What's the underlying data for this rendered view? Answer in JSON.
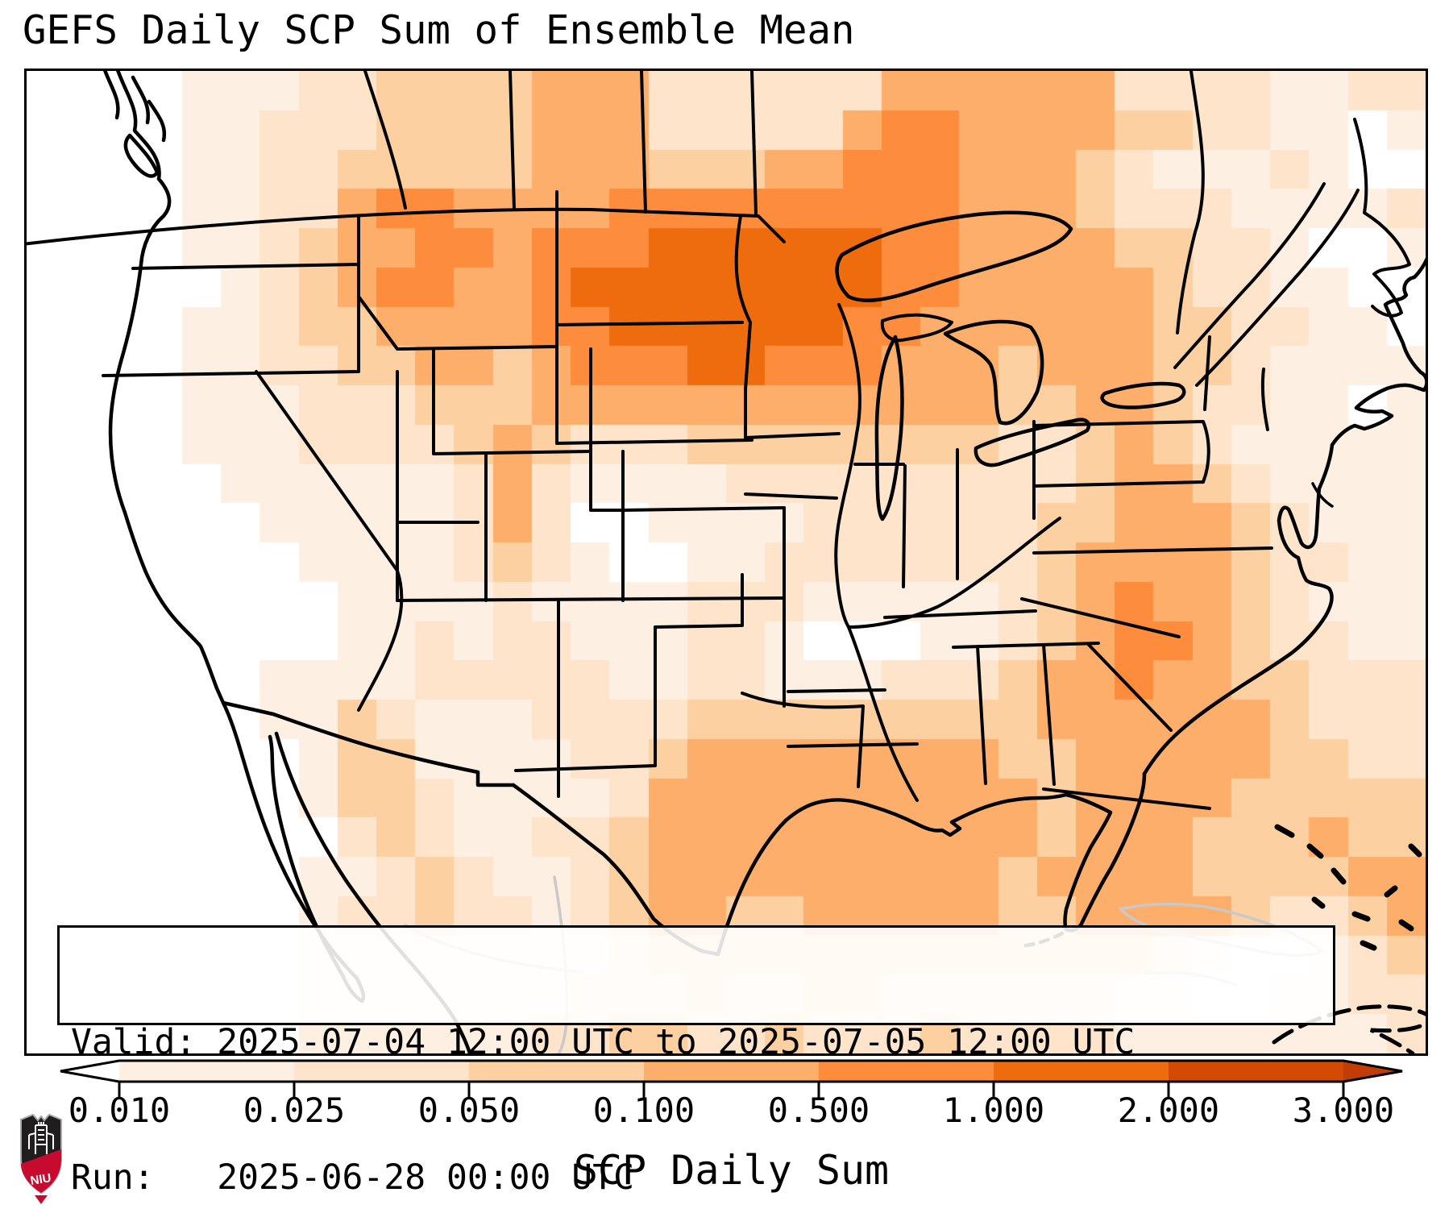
{
  "title": "GEFS Daily SCP Sum of Ensemble Mean",
  "info_box": {
    "valid_label": "Valid:",
    "valid_value": "2025-07-04 12:00 UTC to 2025-07-05 12:00 UTC",
    "run_label": "Run:",
    "run_value": "2025-06-28 00:00 UTC"
  },
  "logo": {
    "text": "NIU",
    "shield_dark": "#1f1d1e",
    "shield_red": "#c80a2e",
    "border_silver": "#a7a7a7"
  },
  "chart_data": {
    "type": "heatmap",
    "title": "GEFS Daily SCP Sum of Ensemble Mean",
    "colorbar_label": "SCP Daily Sum",
    "tick_labels": [
      "0.010",
      "0.025",
      "0.050",
      "0.100",
      "0.500",
      "1.000",
      "2.000",
      "3.000"
    ],
    "levels": [
      0.01,
      0.025,
      0.05,
      0.1,
      0.5,
      1.0,
      2.0,
      3.0
    ],
    "extend": "both",
    "colors": [
      "#ffffff",
      "#fdf0e2",
      "#fde4cb",
      "#fdd0a2",
      "#fdae6b",
      "#fd8d3c",
      "#ef6c0e",
      "#d34b02",
      "#c23d05"
    ],
    "legend_position": "bottom",
    "region": "North America (CONUS, southern Canada, northern Mexico)",
    "grid_note": "color-index grid, run-length encoded rows [index,count]; index 0=below 0.010 (white), 1..7=levels between ticks, 8=above 3.000",
    "grid_cols": 36,
    "grid_rows": 25,
    "grid_rle": [
      [
        [
          0,
          4
        ],
        [
          1,
          3
        ],
        [
          2,
          2
        ],
        [
          3,
          4
        ],
        [
          4,
          3
        ],
        [
          2,
          6
        ],
        [
          4,
          6
        ],
        [
          2,
          4
        ],
        [
          1,
          2
        ],
        [
          2,
          2
        ]
      ],
      [
        [
          0,
          4
        ],
        [
          1,
          2
        ],
        [
          2,
          3
        ],
        [
          3,
          4
        ],
        [
          4,
          3
        ],
        [
          2,
          5
        ],
        [
          4,
          1
        ],
        [
          5,
          2
        ],
        [
          4,
          4
        ],
        [
          3,
          2
        ],
        [
          2,
          2
        ],
        [
          1,
          2
        ],
        [
          0,
          1
        ],
        [
          1,
          1
        ]
      ],
      [
        [
          0,
          4
        ],
        [
          1,
          2
        ],
        [
          2,
          2
        ],
        [
          3,
          5
        ],
        [
          4,
          3
        ],
        [
          3,
          3
        ],
        [
          4,
          2
        ],
        [
          5,
          3
        ],
        [
          4,
          3
        ],
        [
          3,
          1
        ],
        [
          2,
          1
        ],
        [
          1,
          3
        ],
        [
          2,
          1
        ],
        [
          1,
          1
        ],
        [
          0,
          2
        ]
      ],
      [
        [
          0,
          4
        ],
        [
          1,
          2
        ],
        [
          2,
          2
        ],
        [
          4,
          1
        ],
        [
          5,
          2
        ],
        [
          4,
          4
        ],
        [
          5,
          9
        ],
        [
          4,
          3
        ],
        [
          3,
          1
        ],
        [
          2,
          3
        ],
        [
          1,
          4
        ],
        [
          2,
          1
        ]
      ],
      [
        [
          0,
          4
        ],
        [
          1,
          2
        ],
        [
          2,
          1
        ],
        [
          3,
          1
        ],
        [
          4,
          2
        ],
        [
          5,
          2
        ],
        [
          4,
          1
        ],
        [
          5,
          3
        ],
        [
          6,
          6
        ],
        [
          5,
          2
        ],
        [
          4,
          4
        ],
        [
          3,
          2
        ],
        [
          2,
          2
        ],
        [
          1,
          1
        ],
        [
          0,
          2
        ],
        [
          1,
          1
        ]
      ],
      [
        [
          0,
          5
        ],
        [
          1,
          1
        ],
        [
          2,
          1
        ],
        [
          3,
          1
        ],
        [
          4,
          1
        ],
        [
          5,
          2
        ],
        [
          4,
          2
        ],
        [
          5,
          1
        ],
        [
          6,
          8
        ],
        [
          5,
          2
        ],
        [
          4,
          5
        ],
        [
          3,
          1
        ],
        [
          2,
          2
        ],
        [
          1,
          2
        ],
        [
          0,
          2
        ]
      ],
      [
        [
          0,
          4
        ],
        [
          1,
          2
        ],
        [
          2,
          1
        ],
        [
          3,
          2
        ],
        [
          4,
          4
        ],
        [
          5,
          2
        ],
        [
          6,
          6
        ],
        [
          5,
          2
        ],
        [
          4,
          6
        ],
        [
          3,
          2
        ],
        [
          2,
          2
        ],
        [
          1,
          2
        ],
        [
          0,
          1
        ]
      ],
      [
        [
          0,
          4
        ],
        [
          1,
          2
        ],
        [
          2,
          2
        ],
        [
          3,
          2
        ],
        [
          4,
          2
        ],
        [
          3,
          1
        ],
        [
          4,
          1
        ],
        [
          5,
          3
        ],
        [
          6,
          2
        ],
        [
          5,
          3
        ],
        [
          4,
          3
        ],
        [
          3,
          1
        ],
        [
          4,
          3
        ],
        [
          3,
          2
        ],
        [
          2,
          1
        ],
        [
          1,
          4
        ]
      ],
      [
        [
          0,
          4
        ],
        [
          1,
          3
        ],
        [
          2,
          3
        ],
        [
          3,
          3
        ],
        [
          4,
          12
        ],
        [
          3,
          2
        ],
        [
          4,
          2
        ],
        [
          3,
          1
        ],
        [
          2,
          2
        ],
        [
          1,
          2
        ],
        [
          0,
          1
        ],
        [
          1,
          1
        ]
      ],
      [
        [
          0,
          4
        ],
        [
          1,
          3
        ],
        [
          2,
          4
        ],
        [
          3,
          1
        ],
        [
          4,
          1
        ],
        [
          3,
          1
        ],
        [
          2,
          3
        ],
        [
          3,
          8
        ],
        [
          2,
          2
        ],
        [
          3,
          1
        ],
        [
          4,
          1
        ],
        [
          3,
          1
        ],
        [
          2,
          1
        ],
        [
          1,
          5
        ]
      ],
      [
        [
          0,
          5
        ],
        [
          1,
          6
        ],
        [
          2,
          1
        ],
        [
          4,
          1
        ],
        [
          2,
          1
        ],
        [
          1,
          4
        ],
        [
          2,
          9
        ],
        [
          3,
          1
        ],
        [
          4,
          2
        ],
        [
          3,
          1
        ],
        [
          2,
          1
        ],
        [
          1,
          4
        ]
      ],
      [
        [
          0,
          6
        ],
        [
          1,
          5
        ],
        [
          2,
          1
        ],
        [
          4,
          1
        ],
        [
          2,
          1
        ],
        [
          0,
          2
        ],
        [
          1,
          4
        ],
        [
          2,
          6
        ],
        [
          3,
          2
        ],
        [
          4,
          3
        ],
        [
          3,
          1
        ],
        [
          2,
          1
        ],
        [
          1,
          3
        ]
      ],
      [
        [
          0,
          7
        ],
        [
          1,
          4
        ],
        [
          2,
          1
        ],
        [
          3,
          1
        ],
        [
          2,
          1
        ],
        [
          1,
          1
        ],
        [
          0,
          2
        ],
        [
          1,
          2
        ],
        [
          2,
          7
        ],
        [
          3,
          1
        ],
        [
          4,
          4
        ],
        [
          3,
          1
        ],
        [
          2,
          2
        ],
        [
          1,
          2
        ]
      ],
      [
        [
          0,
          8
        ],
        [
          1,
          4
        ],
        [
          2,
          1
        ],
        [
          1,
          4
        ],
        [
          2,
          3
        ],
        [
          1,
          5
        ],
        [
          2,
          1
        ],
        [
          3,
          1
        ],
        [
          4,
          1
        ],
        [
          5,
          1
        ],
        [
          4,
          2
        ],
        [
          3,
          1
        ],
        [
          2,
          1
        ],
        [
          1,
          3
        ]
      ],
      [
        [
          0,
          8
        ],
        [
          1,
          2
        ],
        [
          2,
          1
        ],
        [
          1,
          1
        ],
        [
          2,
          2
        ],
        [
          1,
          3
        ],
        [
          2,
          2
        ],
        [
          1,
          1
        ],
        [
          0,
          3
        ],
        [
          1,
          2
        ],
        [
          2,
          1
        ],
        [
          3,
          1
        ],
        [
          4,
          1
        ],
        [
          5,
          2
        ],
        [
          4,
          1
        ],
        [
          3,
          1
        ],
        [
          2,
          2
        ],
        [
          1,
          2
        ]
      ],
      [
        [
          0,
          6
        ],
        [
          1,
          4
        ],
        [
          2,
          5
        ],
        [
          1,
          2
        ],
        [
          2,
          2
        ],
        [
          1,
          3
        ],
        [
          2,
          3
        ],
        [
          3,
          1
        ],
        [
          4,
          2
        ],
        [
          5,
          1
        ],
        [
          4,
          2
        ],
        [
          3,
          2
        ],
        [
          2,
          3
        ]
      ],
      [
        [
          0,
          6
        ],
        [
          1,
          2
        ],
        [
          3,
          1
        ],
        [
          2,
          1
        ],
        [
          1,
          3
        ],
        [
          2,
          4
        ],
        [
          3,
          9
        ],
        [
          4,
          6
        ],
        [
          3,
          1
        ],
        [
          2,
          3
        ]
      ],
      [
        [
          0,
          7
        ],
        [
          1,
          1
        ],
        [
          3,
          2
        ],
        [
          1,
          4
        ],
        [
          2,
          2
        ],
        [
          3,
          1
        ],
        [
          4,
          8
        ],
        [
          3,
          2
        ],
        [
          4,
          5
        ],
        [
          3,
          2
        ],
        [
          2,
          2
        ]
      ],
      [
        [
          0,
          7
        ],
        [
          1,
          1
        ],
        [
          3,
          2
        ],
        [
          2,
          1
        ],
        [
          1,
          4
        ],
        [
          2,
          1
        ],
        [
          4,
          10
        ],
        [
          3,
          1
        ],
        [
          4,
          4
        ],
        [
          3,
          5
        ]
      ],
      [
        [
          0,
          8
        ],
        [
          2,
          1
        ],
        [
          3,
          1
        ],
        [
          2,
          1
        ],
        [
          1,
          2
        ],
        [
          2,
          2
        ],
        [
          3,
          1
        ],
        [
          4,
          10
        ],
        [
          3,
          1
        ],
        [
          4,
          3
        ],
        [
          3,
          3
        ],
        [
          4,
          1
        ],
        [
          3,
          2
        ]
      ],
      [
        [
          0,
          7
        ],
        [
          1,
          2
        ],
        [
          2,
          1
        ],
        [
          3,
          1
        ],
        [
          2,
          1
        ],
        [
          1,
          2
        ],
        [
          2,
          1
        ],
        [
          3,
          1
        ],
        [
          4,
          9
        ],
        [
          3,
          1
        ],
        [
          4,
          4
        ],
        [
          3,
          4
        ],
        [
          4,
          2
        ]
      ],
      [
        [
          0,
          7
        ],
        [
          1,
          1
        ],
        [
          2,
          2
        ],
        [
          3,
          1
        ],
        [
          2,
          2
        ],
        [
          1,
          1
        ],
        [
          2,
          1
        ],
        [
          3,
          1
        ],
        [
          4,
          2
        ],
        [
          3,
          2
        ],
        [
          4,
          5
        ],
        [
          3,
          2
        ],
        [
          4,
          4
        ],
        [
          3,
          1
        ],
        [
          2,
          2
        ],
        [
          3,
          1
        ],
        [
          4,
          1
        ]
      ],
      [
        [
          0,
          7
        ],
        [
          1,
          8
        ],
        [
          2,
          1
        ],
        [
          3,
          13
        ],
        [
          2,
          1
        ],
        [
          1,
          1
        ],
        [
          0,
          2
        ],
        [
          1,
          1
        ],
        [
          2,
          1
        ],
        [
          3,
          1
        ]
      ],
      [
        [
          0,
          7
        ],
        [
          1,
          7
        ],
        [
          2,
          3
        ],
        [
          3,
          1
        ],
        [
          2,
          2
        ],
        [
          3,
          2
        ],
        [
          2,
          6
        ],
        [
          1,
          2
        ],
        [
          0,
          2
        ],
        [
          1,
          2
        ],
        [
          2,
          2
        ]
      ],
      [
        [
          0,
          7
        ],
        [
          1,
          6
        ],
        [
          2,
          2
        ],
        [
          3,
          2
        ],
        [
          2,
          2
        ],
        [
          3,
          1
        ],
        [
          2,
          3
        ],
        [
          3,
          1
        ],
        [
          2,
          4
        ],
        [
          1,
          7
        ],
        [
          2,
          1
        ]
      ]
    ]
  }
}
